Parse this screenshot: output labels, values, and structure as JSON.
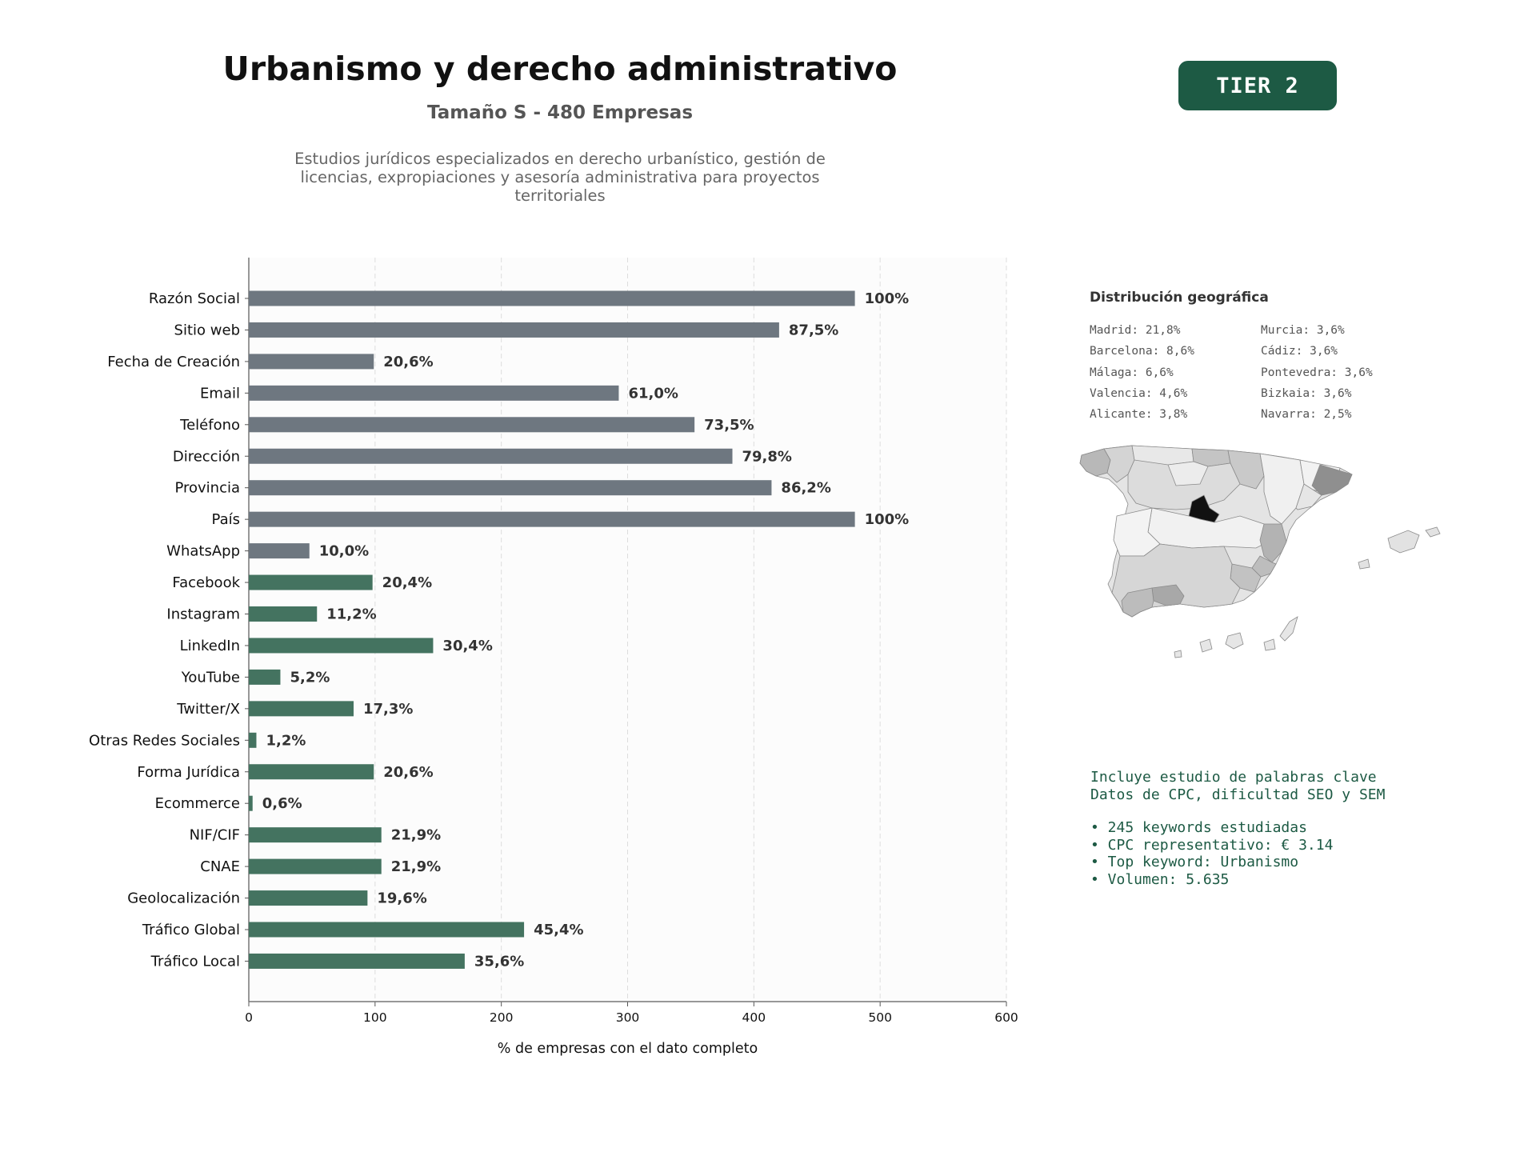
{
  "header": {
    "title": "Urbanismo y derecho administrativo",
    "subtitle": "Tamaño S - 480 Empresas",
    "description": "Estudios jurídicos especializados en derecho urbanístico, gestión de licencias, expropiaciones y asesoría administrativa para proyectos territoriales",
    "tier": "TIER 2"
  },
  "colors": {
    "bar_gray": "#6e7780",
    "bar_green": "#447360",
    "tier_bg": "#1d5a44",
    "keyword_text": "#1d5a44"
  },
  "chart_data": {
    "type": "bar",
    "orientation": "horizontal",
    "categories": [
      "Razón Social",
      "Sitio web",
      "Fecha de Creación",
      "Email",
      "Teléfono",
      "Dirección",
      "Provincia",
      "País",
      "WhatsApp",
      "Facebook",
      "Instagram",
      "LinkedIn",
      "YouTube",
      "Twitter/X",
      "Otras Redes Sociales",
      "Forma Jurídica",
      "Ecommerce",
      "NIF/CIF",
      "CNAE",
      "Geolocalización",
      "Tráfico Global",
      "Tráfico Local"
    ],
    "values": [
      480,
      420,
      99,
      293,
      353,
      383,
      414,
      480,
      48,
      98,
      54,
      146,
      25,
      83,
      6,
      99,
      3,
      105,
      105,
      94,
      218,
      171
    ],
    "labels": [
      "100%",
      "87,5%",
      "20,6%",
      "61,0%",
      "73,5%",
      "79,8%",
      "86,2%",
      "100%",
      "10,0%",
      "20,4%",
      "11,2%",
      "30,4%",
      "5,2%",
      "17,3%",
      "1,2%",
      "20,6%",
      "0,6%",
      "21,9%",
      "21,9%",
      "19,6%",
      "45,4%",
      "35,6%"
    ],
    "groups": [
      "gray",
      "gray",
      "gray",
      "gray",
      "gray",
      "gray",
      "gray",
      "gray",
      "gray",
      "green",
      "green",
      "green",
      "green",
      "green",
      "green",
      "green",
      "green",
      "green",
      "green",
      "green",
      "green",
      "green"
    ],
    "xlabel": "% de empresas con el dato completo",
    "xlim": [
      0,
      600
    ],
    "xticks": [
      0,
      100,
      200,
      300,
      400,
      500,
      600
    ],
    "grid": "vertical dashed"
  },
  "geo": {
    "title": "Distribución geográfica",
    "col1": [
      "Madrid: 21,8%",
      "Barcelona: 8,6%",
      "Málaga: 6,6%",
      "Valencia: 4,6%",
      "Alicante: 3,8%"
    ],
    "col2": [
      "Murcia: 3,6%",
      "Cádiz: 3,6%",
      "Pontevedra: 3,6%",
      "Bizkaia: 3,6%",
      "Navarra: 2,5%"
    ]
  },
  "keywords": {
    "line1": "Incluye estudio de palabras clave",
    "line2": "Datos de CPC, dificultad SEO y SEM",
    "bullet1": "• 245 keywords estudiadas",
    "bullet2": "• CPC representativo: € 3.14",
    "bullet3": "• Top keyword: Urbanismo",
    "bullet4": "• Volumen: 5.635"
  }
}
